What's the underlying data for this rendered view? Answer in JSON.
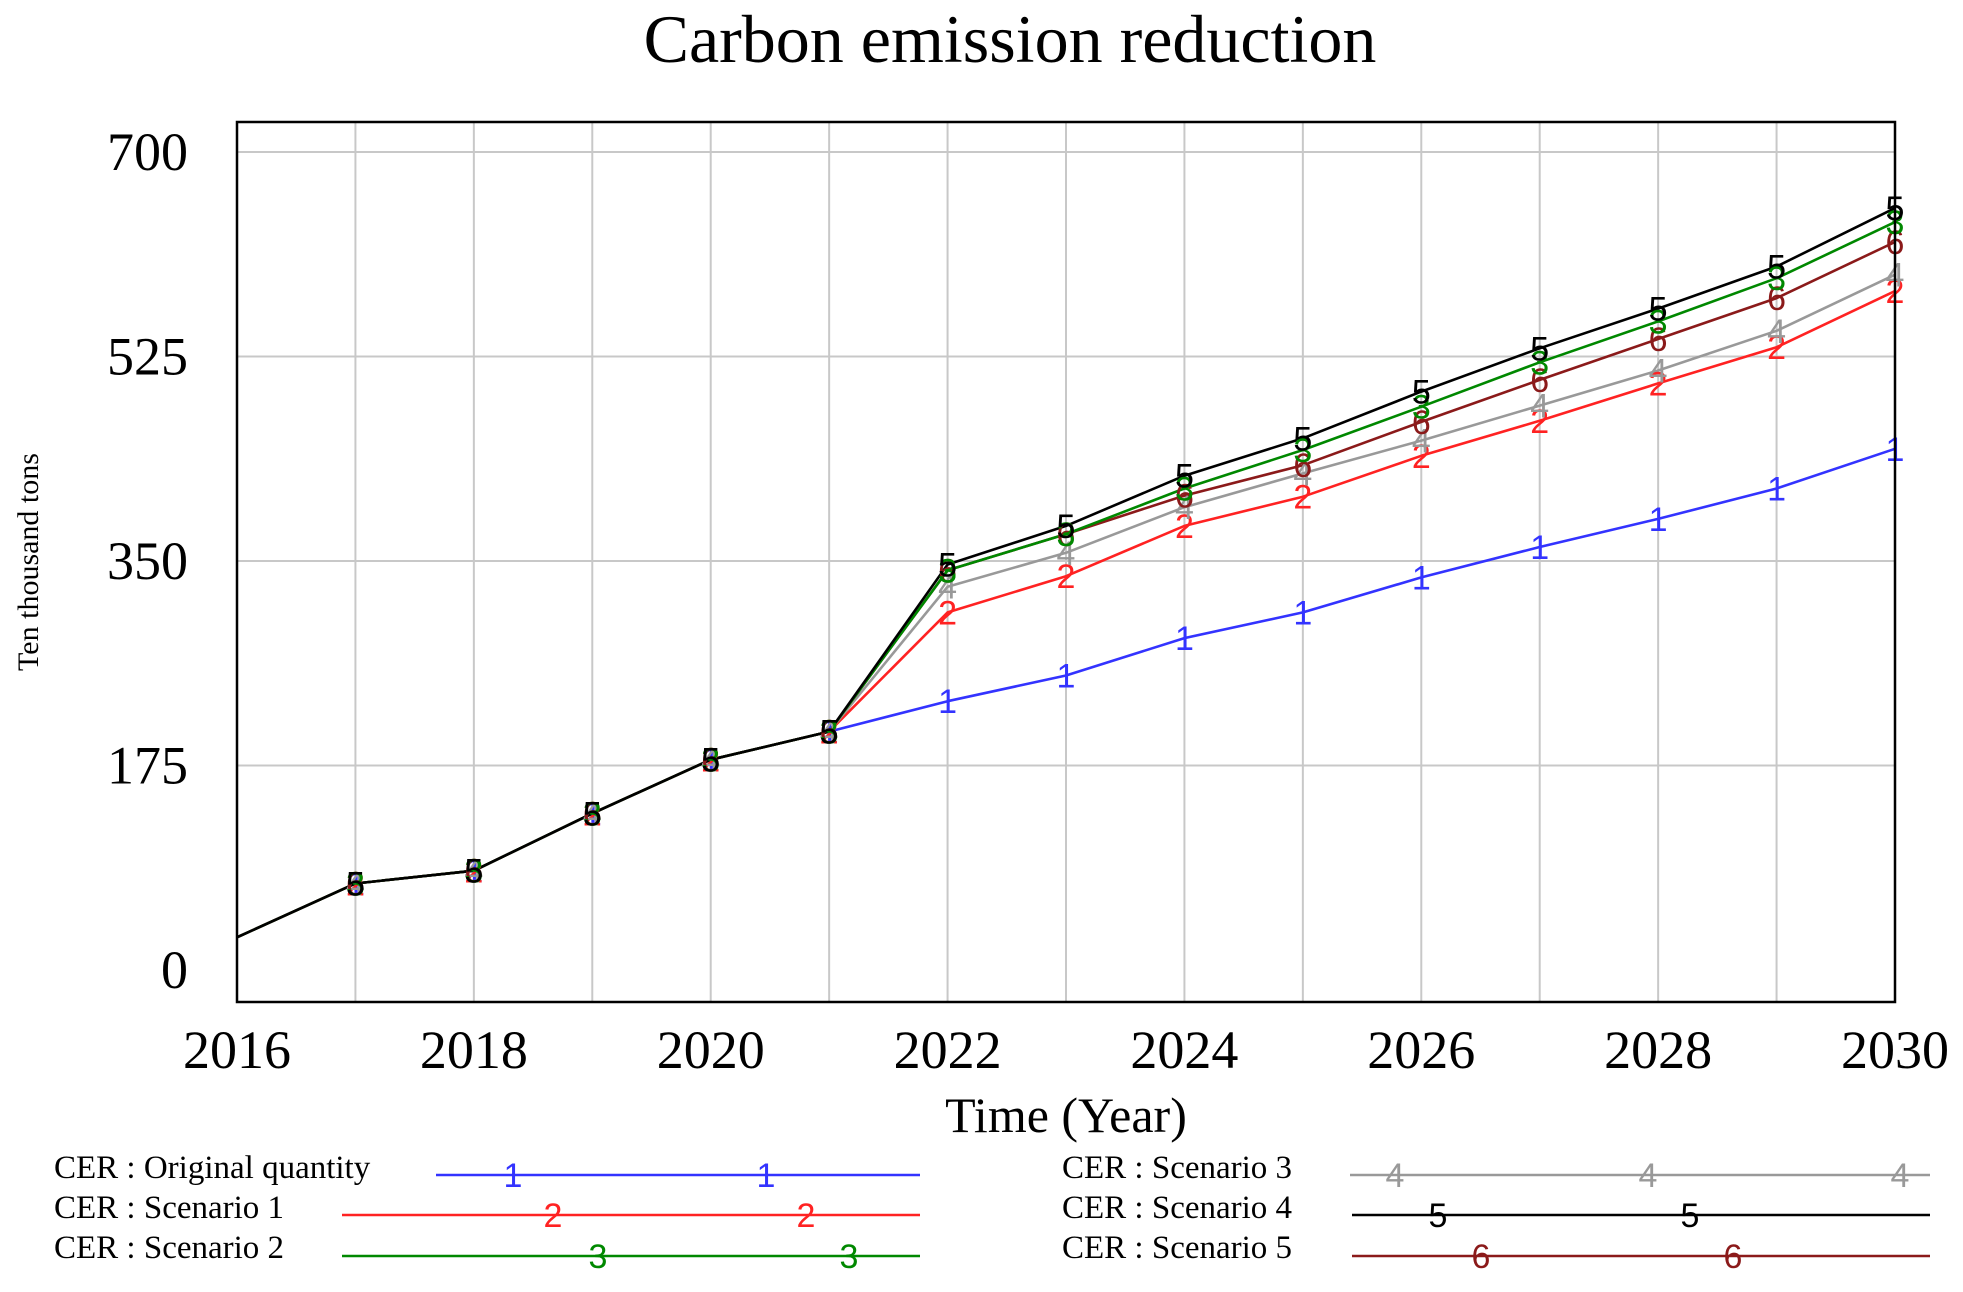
{
  "chart_data": {
    "type": "line",
    "title": "Carbon emission reduction",
    "xlabel": "Time (Year)",
    "ylabel": "Ten thousand tons",
    "xlim": [
      2016,
      2030
    ],
    "ylim": [
      0,
      700
    ],
    "xticks": [
      "2016",
      "2018",
      "2020",
      "2022",
      "2024",
      "2026",
      "2028",
      "2030"
    ],
    "yticks": [
      "0",
      "175",
      "350",
      "525",
      "700"
    ],
    "grid": true,
    "x": [
      2016,
      2017,
      2018,
      2019,
      2020,
      2021,
      2022,
      2023,
      2024,
      2025,
      2026,
      2027,
      2028,
      2029,
      2030
    ],
    "series": [
      {
        "name": "CER : Original quantity",
        "marker": "1",
        "color": "#3333ff",
        "values": [
          28,
          74,
          85,
          134,
          180,
          204,
          230,
          252,
          284,
          306,
          336,
          362,
          386,
          412,
          446
        ]
      },
      {
        "name": "CER : Scenario 1",
        "marker": "2",
        "color": "#ff2222",
        "values": [
          28,
          74,
          85,
          134,
          180,
          204,
          306,
          337,
          380,
          405,
          440,
          470,
          502,
          533,
          581
        ]
      },
      {
        "name": "CER : Scenario 2",
        "marker": "3",
        "color": "#008800",
        "values": [
          28,
          74,
          85,
          134,
          180,
          204,
          342,
          373,
          412,
          445,
          482,
          520,
          555,
          592,
          640
        ]
      },
      {
        "name": "CER : Scenario 3",
        "marker": "4",
        "color": "#999999",
        "values": [
          28,
          74,
          85,
          134,
          180,
          204,
          328,
          357,
          396,
          425,
          453,
          483,
          513,
          547,
          595
        ]
      },
      {
        "name": "CER : Scenario 4",
        "marker": "5",
        "color": "#000000",
        "values": [
          28,
          74,
          85,
          134,
          180,
          204,
          347,
          380,
          423,
          455,
          495,
          532,
          566,
          602,
          652
        ]
      },
      {
        "name": "CER : Scenario 5",
        "marker": "6",
        "color": "#8b1a1a",
        "values": [
          28,
          74,
          85,
          134,
          180,
          204,
          342,
          373,
          406,
          432,
          469,
          505,
          540,
          575,
          623
        ]
      }
    ],
    "legend_position": "bottom"
  }
}
